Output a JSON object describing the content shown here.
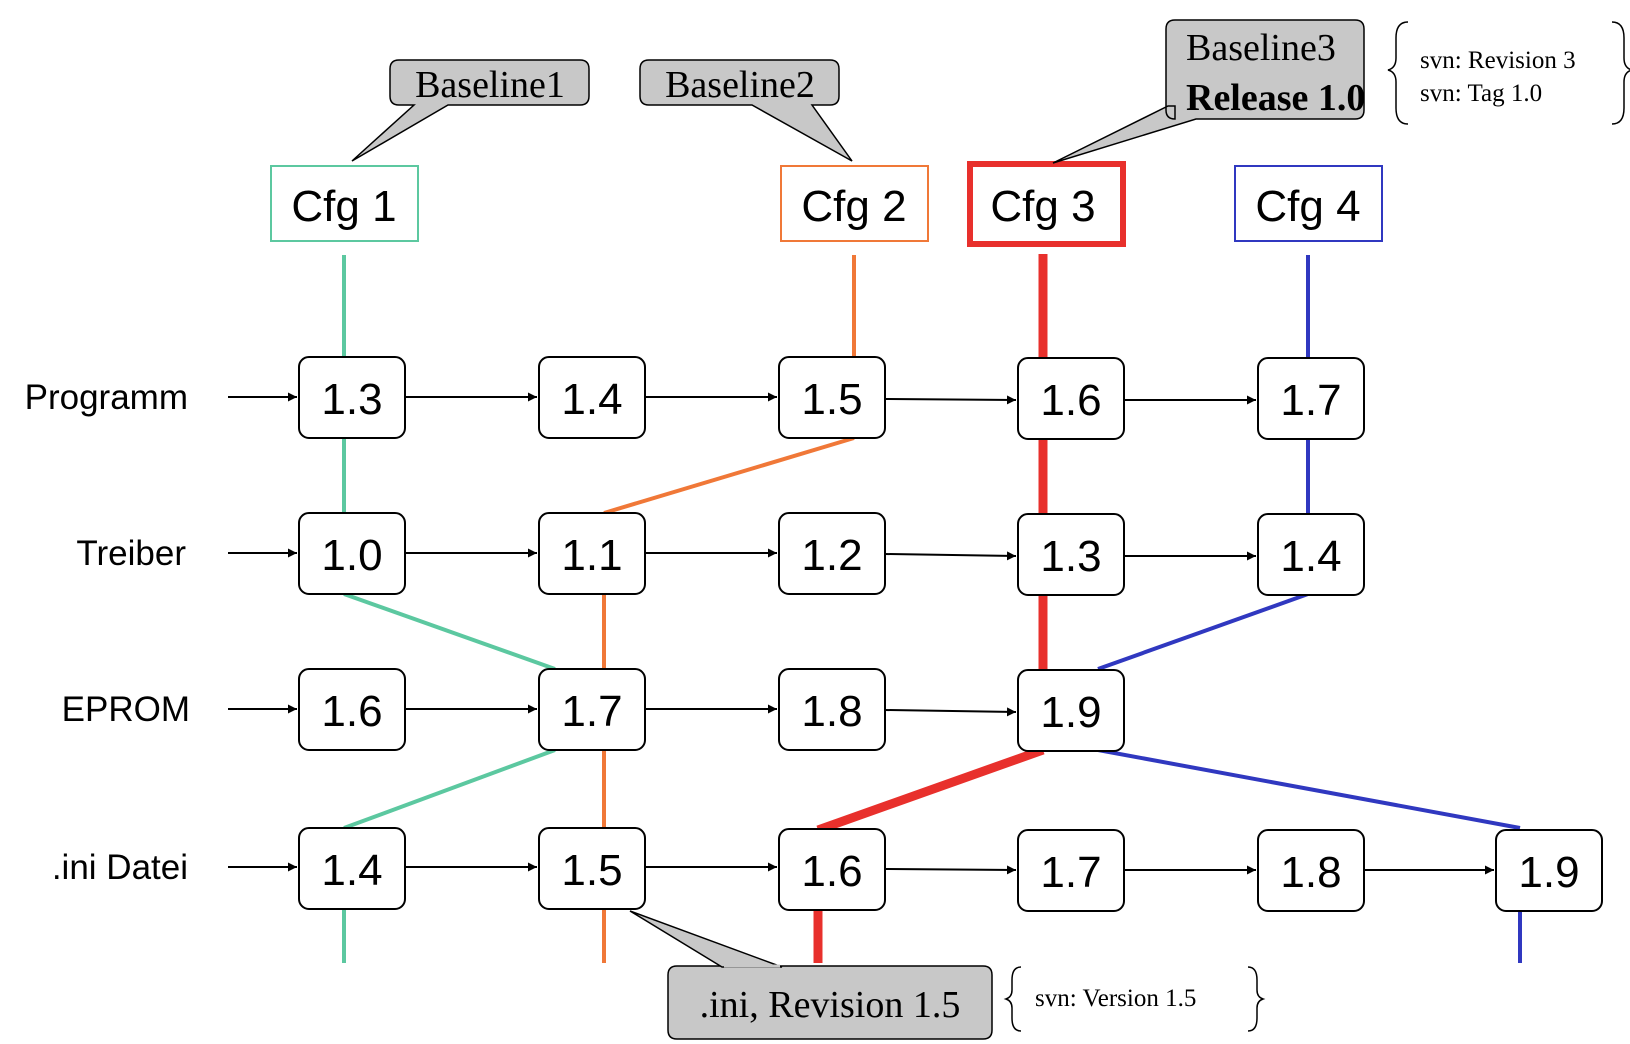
{
  "rows": [
    {
      "label": "Programm",
      "versions": [
        "1.3",
        "1.4",
        "1.5",
        "1.6",
        "1.7"
      ]
    },
    {
      "label": "Treiber",
      "versions": [
        "1.0",
        "1.1",
        "1.2",
        "1.3",
        "1.4"
      ]
    },
    {
      "label": "EPROM",
      "versions": [
        "1.6",
        "1.7",
        "1.8",
        "1.9"
      ]
    },
    {
      "label": ".ini Datei",
      "versions": [
        "1.4",
        "1.5",
        "1.6",
        "1.7",
        "1.8",
        "1.9"
      ]
    }
  ],
  "configs": [
    {
      "label": "Cfg 1",
      "color": "#5cc8a0"
    },
    {
      "label": "Cfg 2",
      "color": "#f07838"
    },
    {
      "label": "Cfg 3",
      "color": "#e8302c"
    },
    {
      "label": "Cfg 4",
      "color": "#3038c0"
    }
  ],
  "callouts": {
    "baseline1": "Baseline1",
    "baseline2": "Baseline2",
    "baseline3_line1": "Baseline3",
    "baseline3_line2": "Release 1.0",
    "ini_revision": ".ini, Revision 1.5"
  },
  "notes": {
    "svn_revision": "svn: Revision 3",
    "svn_tag": "svn: Tag 1.0",
    "svn_version": "svn: Version 1.5"
  }
}
